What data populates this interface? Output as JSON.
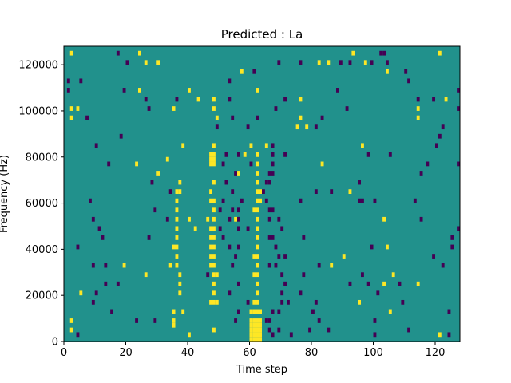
{
  "chart_data": {
    "type": "heatmap",
    "title": "Predicted : La",
    "xlabel": "Time step",
    "ylabel": "Frequency (Hz)",
    "xlim": [
      0,
      128
    ],
    "ylim": [
      0,
      128000
    ],
    "xticks": [
      0,
      20,
      40,
      60,
      80,
      100,
      120
    ],
    "xtick_labels": [
      "0",
      "20",
      "40",
      "60",
      "80",
      "100",
      "120"
    ],
    "yticks": [
      0,
      20000,
      40000,
      60000,
      80000,
      100000,
      120000
    ],
    "ytick_labels": [
      "0",
      "20000",
      "40000",
      "60000",
      "80000",
      "100000",
      "120000"
    ],
    "colormap": "viridis",
    "colors": {
      "low": "#440154",
      "mid": "#21918c",
      "high": "#fde725"
    },
    "background_value": "mid",
    "cell_height_hz": 2000,
    "grid": false,
    "high_cells": [
      {
        "x": 2,
        "y": 124000
      },
      {
        "x": 24,
        "y": 124000
      },
      {
        "x": 93,
        "y": 124000
      },
      {
        "x": 121,
        "y": 124000
      },
      {
        "x": 26,
        "y": 120000
      },
      {
        "x": 30,
        "y": 120000
      },
      {
        "x": 82,
        "y": 120000
      },
      {
        "x": 85,
        "y": 120000
      },
      {
        "x": 97,
        "y": 120000
      },
      {
        "x": 57,
        "y": 116000
      },
      {
        "x": 104,
        "y": 116000
      },
      {
        "x": 40,
        "y": 108000
      },
      {
        "x": 24,
        "y": 108000
      },
      {
        "x": 62,
        "y": 108000
      },
      {
        "x": 43,
        "y": 104000
      },
      {
        "x": 48,
        "y": 104000
      },
      {
        "x": 76,
        "y": 104000
      },
      {
        "x": 123,
        "y": 104000
      },
      {
        "x": 2,
        "y": 100000
      },
      {
        "x": 4,
        "y": 100000
      },
      {
        "x": 35,
        "y": 100000
      },
      {
        "x": 48,
        "y": 100000
      },
      {
        "x": 114,
        "y": 100000
      },
      {
        "x": 2,
        "y": 96000
      },
      {
        "x": 49,
        "y": 96000
      },
      {
        "x": 76,
        "y": 96000
      },
      {
        "x": 114,
        "y": 96000
      },
      {
        "x": 75,
        "y": 92000
      },
      {
        "x": 78,
        "y": 92000
      },
      {
        "x": 38,
        "y": 84000
      },
      {
        "x": 48,
        "y": 84000
      },
      {
        "x": 60,
        "y": 84000
      },
      {
        "x": 65,
        "y": 84000
      },
      {
        "x": 96,
        "y": 84000
      },
      {
        "x": 47,
        "y": 80000
      },
      {
        "x": 48,
        "y": 80000
      },
      {
        "x": 58,
        "y": 80000
      },
      {
        "x": 62,
        "y": 80000
      },
      {
        "x": 47,
        "y": 78000
      },
      {
        "x": 48,
        "y": 78000
      },
      {
        "x": 33,
        "y": 78000
      },
      {
        "x": 47,
        "y": 76000
      },
      {
        "x": 48,
        "y": 76000
      },
      {
        "x": 23,
        "y": 76000
      },
      {
        "x": 62,
        "y": 76000
      },
      {
        "x": 83,
        "y": 76000
      },
      {
        "x": 62,
        "y": 72000
      },
      {
        "x": 30,
        "y": 72000
      },
      {
        "x": 56,
        "y": 72000
      },
      {
        "x": 37,
        "y": 68000
      },
      {
        "x": 48,
        "y": 68000
      },
      {
        "x": 62,
        "y": 68000
      },
      {
        "x": 36,
        "y": 64000
      },
      {
        "x": 37,
        "y": 64000
      },
      {
        "x": 47,
        "y": 64000
      },
      {
        "x": 62,
        "y": 64000
      },
      {
        "x": 63,
        "y": 64000
      },
      {
        "x": 92,
        "y": 64000
      },
      {
        "x": 36,
        "y": 60000
      },
      {
        "x": 47,
        "y": 60000
      },
      {
        "x": 48,
        "y": 60000
      },
      {
        "x": 62,
        "y": 60000
      },
      {
        "x": 63,
        "y": 60000
      },
      {
        "x": 36,
        "y": 56000
      },
      {
        "x": 48,
        "y": 56000
      },
      {
        "x": 61,
        "y": 56000
      },
      {
        "x": 62,
        "y": 56000
      },
      {
        "x": 36,
        "y": 52000
      },
      {
        "x": 40,
        "y": 52000
      },
      {
        "x": 46,
        "y": 52000
      },
      {
        "x": 48,
        "y": 52000
      },
      {
        "x": 55,
        "y": 52000
      },
      {
        "x": 62,
        "y": 52000
      },
      {
        "x": 103,
        "y": 52000
      },
      {
        "x": 36,
        "y": 48000
      },
      {
        "x": 42,
        "y": 48000
      },
      {
        "x": 47,
        "y": 48000
      },
      {
        "x": 48,
        "y": 48000
      },
      {
        "x": 62,
        "y": 48000
      },
      {
        "x": 36,
        "y": 44000
      },
      {
        "x": 47,
        "y": 44000
      },
      {
        "x": 48,
        "y": 44000
      },
      {
        "x": 62,
        "y": 44000
      },
      {
        "x": 35,
        "y": 40000
      },
      {
        "x": 36,
        "y": 40000
      },
      {
        "x": 47,
        "y": 40000
      },
      {
        "x": 48,
        "y": 40000
      },
      {
        "x": 62,
        "y": 40000
      },
      {
        "x": 104,
        "y": 40000
      },
      {
        "x": 36,
        "y": 36000
      },
      {
        "x": 47,
        "y": 36000
      },
      {
        "x": 48,
        "y": 36000
      },
      {
        "x": 61,
        "y": 36000
      },
      {
        "x": 62,
        "y": 36000
      },
      {
        "x": 90,
        "y": 36000
      },
      {
        "x": 34,
        "y": 32000
      },
      {
        "x": 36,
        "y": 32000
      },
      {
        "x": 47,
        "y": 32000
      },
      {
        "x": 48,
        "y": 32000
      },
      {
        "x": 62,
        "y": 32000
      },
      {
        "x": 19,
        "y": 32000
      },
      {
        "x": 86,
        "y": 32000
      },
      {
        "x": 26,
        "y": 28000
      },
      {
        "x": 37,
        "y": 28000
      },
      {
        "x": 48,
        "y": 28000
      },
      {
        "x": 49,
        "y": 28000
      },
      {
        "x": 61,
        "y": 28000
      },
      {
        "x": 62,
        "y": 28000
      },
      {
        "x": 106,
        "y": 28000
      },
      {
        "x": 37,
        "y": 24000
      },
      {
        "x": 48,
        "y": 24000
      },
      {
        "x": 62,
        "y": 24000
      },
      {
        "x": 103,
        "y": 24000
      },
      {
        "x": 114,
        "y": 24000
      },
      {
        "x": 5,
        "y": 20000
      },
      {
        "x": 37,
        "y": 20000
      },
      {
        "x": 48,
        "y": 20000
      },
      {
        "x": 62,
        "y": 20000
      },
      {
        "x": 47,
        "y": 16000
      },
      {
        "x": 48,
        "y": 16000
      },
      {
        "x": 49,
        "y": 16000
      },
      {
        "x": 61,
        "y": 16000
      },
      {
        "x": 62,
        "y": 16000
      },
      {
        "x": 95,
        "y": 16000
      },
      {
        "x": 35,
        "y": 12000
      },
      {
        "x": 38,
        "y": 12000
      },
      {
        "x": 60,
        "y": 12000
      },
      {
        "x": 61,
        "y": 12000
      },
      {
        "x": 62,
        "y": 12000
      },
      {
        "x": 63,
        "y": 12000
      },
      {
        "x": 105,
        "y": 12000
      },
      {
        "x": 2,
        "y": 8000
      },
      {
        "x": 35,
        "y": 8000
      },
      {
        "x": 60,
        "y": 8000
      },
      {
        "x": 61,
        "y": 8000
      },
      {
        "x": 62,
        "y": 8000
      },
      {
        "x": 63,
        "y": 8000
      },
      {
        "x": 35,
        "y": 6000
      },
      {
        "x": 60,
        "y": 6000
      },
      {
        "x": 61,
        "y": 6000
      },
      {
        "x": 62,
        "y": 6000
      },
      {
        "x": 63,
        "y": 6000
      },
      {
        "x": 2,
        "y": 4000
      },
      {
        "x": 60,
        "y": 4000
      },
      {
        "x": 61,
        "y": 4000
      },
      {
        "x": 62,
        "y": 4000
      },
      {
        "x": 63,
        "y": 4000
      },
      {
        "x": 48,
        "y": 4000
      },
      {
        "x": 40,
        "y": 2000
      },
      {
        "x": 60,
        "y": 2000
      },
      {
        "x": 61,
        "y": 2000
      },
      {
        "x": 62,
        "y": 2000
      },
      {
        "x": 63,
        "y": 2000
      },
      {
        "x": 121,
        "y": 2000
      },
      {
        "x": 60,
        "y": 0
      },
      {
        "x": 61,
        "y": 0
      },
      {
        "x": 62,
        "y": 0
      },
      {
        "x": 63,
        "y": 0
      }
    ],
    "low_cells": [
      {
        "x": 17,
        "y": 124000
      },
      {
        "x": 102,
        "y": 124000
      },
      {
        "x": 103,
        "y": 124000
      },
      {
        "x": 20,
        "y": 120000
      },
      {
        "x": 69,
        "y": 120000
      },
      {
        "x": 76,
        "y": 120000
      },
      {
        "x": 89,
        "y": 120000
      },
      {
        "x": 92,
        "y": 120000
      },
      {
        "x": 99,
        "y": 120000
      },
      {
        "x": 104,
        "y": 120000
      },
      {
        "x": 61,
        "y": 116000
      },
      {
        "x": 110,
        "y": 116000
      },
      {
        "x": 1,
        "y": 112000
      },
      {
        "x": 5,
        "y": 112000
      },
      {
        "x": 53,
        "y": 112000
      },
      {
        "x": 111,
        "y": 112000
      },
      {
        "x": 1,
        "y": 108000
      },
      {
        "x": 19,
        "y": 108000
      },
      {
        "x": 88,
        "y": 108000
      },
      {
        "x": 127,
        "y": 108000
      },
      {
        "x": 26,
        "y": 104000
      },
      {
        "x": 36,
        "y": 104000
      },
      {
        "x": 53,
        "y": 104000
      },
      {
        "x": 71,
        "y": 104000
      },
      {
        "x": 114,
        "y": 104000
      },
      {
        "x": 119,
        "y": 104000
      },
      {
        "x": 27,
        "y": 100000
      },
      {
        "x": 68,
        "y": 100000
      },
      {
        "x": 91,
        "y": 100000
      },
      {
        "x": 127,
        "y": 100000
      },
      {
        "x": 7,
        "y": 96000
      },
      {
        "x": 54,
        "y": 96000
      },
      {
        "x": 62,
        "y": 96000
      },
      {
        "x": 83,
        "y": 96000
      },
      {
        "x": 49,
        "y": 92000
      },
      {
        "x": 59,
        "y": 92000
      },
      {
        "x": 81,
        "y": 92000
      },
      {
        "x": 122,
        "y": 92000
      },
      {
        "x": 18,
        "y": 88000
      },
      {
        "x": 121,
        "y": 88000
      },
      {
        "x": 10,
        "y": 84000
      },
      {
        "x": 67,
        "y": 84000
      },
      {
        "x": 120,
        "y": 84000
      },
      {
        "x": 52,
        "y": 80000
      },
      {
        "x": 56,
        "y": 80000
      },
      {
        "x": 67,
        "y": 80000
      },
      {
        "x": 71,
        "y": 80000
      },
      {
        "x": 98,
        "y": 80000
      },
      {
        "x": 105,
        "y": 80000
      },
      {
        "x": 14,
        "y": 76000
      },
      {
        "x": 51,
        "y": 76000
      },
      {
        "x": 60,
        "y": 76000
      },
      {
        "x": 67,
        "y": 76000
      },
      {
        "x": 117,
        "y": 76000
      },
      {
        "x": 127,
        "y": 76000
      },
      {
        "x": 55,
        "y": 72000
      },
      {
        "x": 66,
        "y": 72000
      },
      {
        "x": 67,
        "y": 72000
      },
      {
        "x": 115,
        "y": 72000
      },
      {
        "x": 28,
        "y": 68000
      },
      {
        "x": 52,
        "y": 68000
      },
      {
        "x": 65,
        "y": 68000
      },
      {
        "x": 66,
        "y": 68000
      },
      {
        "x": 95,
        "y": 68000
      },
      {
        "x": 34,
        "y": 64000
      },
      {
        "x": 54,
        "y": 64000
      },
      {
        "x": 64,
        "y": 64000
      },
      {
        "x": 81,
        "y": 64000
      },
      {
        "x": 86,
        "y": 64000
      },
      {
        "x": 8,
        "y": 60000
      },
      {
        "x": 51,
        "y": 60000
      },
      {
        "x": 57,
        "y": 60000
      },
      {
        "x": 65,
        "y": 60000
      },
      {
        "x": 76,
        "y": 60000
      },
      {
        "x": 95,
        "y": 60000
      },
      {
        "x": 96,
        "y": 60000
      },
      {
        "x": 100,
        "y": 60000
      },
      {
        "x": 113,
        "y": 60000
      },
      {
        "x": 29,
        "y": 56000
      },
      {
        "x": 50,
        "y": 56000
      },
      {
        "x": 54,
        "y": 56000
      },
      {
        "x": 56,
        "y": 56000
      },
      {
        "x": 66,
        "y": 56000
      },
      {
        "x": 67,
        "y": 56000
      },
      {
        "x": 9,
        "y": 52000
      },
      {
        "x": 33,
        "y": 52000
      },
      {
        "x": 53,
        "y": 52000
      },
      {
        "x": 56,
        "y": 52000
      },
      {
        "x": 66,
        "y": 52000
      },
      {
        "x": 69,
        "y": 52000
      },
      {
        "x": 115,
        "y": 52000
      },
      {
        "x": 11,
        "y": 48000
      },
      {
        "x": 50,
        "y": 48000
      },
      {
        "x": 56,
        "y": 48000
      },
      {
        "x": 59,
        "y": 48000
      },
      {
        "x": 70,
        "y": 48000
      },
      {
        "x": 127,
        "y": 48000
      },
      {
        "x": 12,
        "y": 44000
      },
      {
        "x": 27,
        "y": 44000
      },
      {
        "x": 51,
        "y": 44000
      },
      {
        "x": 66,
        "y": 44000
      },
      {
        "x": 67,
        "y": 44000
      },
      {
        "x": 77,
        "y": 44000
      },
      {
        "x": 125,
        "y": 44000
      },
      {
        "x": 4,
        "y": 40000
      },
      {
        "x": 53,
        "y": 40000
      },
      {
        "x": 56,
        "y": 40000
      },
      {
        "x": 68,
        "y": 40000
      },
      {
        "x": 99,
        "y": 40000
      },
      {
        "x": 125,
        "y": 40000
      },
      {
        "x": 55,
        "y": 36000
      },
      {
        "x": 69,
        "y": 36000
      },
      {
        "x": 71,
        "y": 36000
      },
      {
        "x": 119,
        "y": 36000
      },
      {
        "x": 9,
        "y": 32000
      },
      {
        "x": 13,
        "y": 32000
      },
      {
        "x": 54,
        "y": 32000
      },
      {
        "x": 66,
        "y": 32000
      },
      {
        "x": 68,
        "y": 32000
      },
      {
        "x": 82,
        "y": 32000
      },
      {
        "x": 122,
        "y": 32000
      },
      {
        "x": 46,
        "y": 28000
      },
      {
        "x": 70,
        "y": 28000
      },
      {
        "x": 77,
        "y": 28000
      },
      {
        "x": 96,
        "y": 28000
      },
      {
        "x": 13,
        "y": 24000
      },
      {
        "x": 17,
        "y": 24000
      },
      {
        "x": 56,
        "y": 24000
      },
      {
        "x": 71,
        "y": 24000
      },
      {
        "x": 92,
        "y": 24000
      },
      {
        "x": 98,
        "y": 24000
      },
      {
        "x": 108,
        "y": 24000
      },
      {
        "x": 10,
        "y": 20000
      },
      {
        "x": 53,
        "y": 20000
      },
      {
        "x": 70,
        "y": 20000
      },
      {
        "x": 76,
        "y": 20000
      },
      {
        "x": 101,
        "y": 20000
      },
      {
        "x": 9,
        "y": 16000
      },
      {
        "x": 59,
        "y": 16000
      },
      {
        "x": 70,
        "y": 16000
      },
      {
        "x": 72,
        "y": 16000
      },
      {
        "x": 81,
        "y": 16000
      },
      {
        "x": 109,
        "y": 16000
      },
      {
        "x": 15,
        "y": 12000
      },
      {
        "x": 56,
        "y": 12000
      },
      {
        "x": 67,
        "y": 12000
      },
      {
        "x": 69,
        "y": 12000
      },
      {
        "x": 80,
        "y": 12000
      },
      {
        "x": 124,
        "y": 12000
      },
      {
        "x": 23,
        "y": 8000
      },
      {
        "x": 29,
        "y": 8000
      },
      {
        "x": 55,
        "y": 8000
      },
      {
        "x": 65,
        "y": 8000
      },
      {
        "x": 66,
        "y": 8000
      },
      {
        "x": 82,
        "y": 8000
      },
      {
        "x": 100,
        "y": 8000
      },
      {
        "x": 66,
        "y": 4000
      },
      {
        "x": 69,
        "y": 4000
      },
      {
        "x": 79,
        "y": 4000
      },
      {
        "x": 85,
        "y": 4000
      },
      {
        "x": 111,
        "y": 4000
      },
      {
        "x": 4,
        "y": 2000
      },
      {
        "x": 67,
        "y": 2000
      },
      {
        "x": 73,
        "y": 2000
      },
      {
        "x": 100,
        "y": 2000
      },
      {
        "x": 124,
        "y": 2000
      }
    ]
  }
}
